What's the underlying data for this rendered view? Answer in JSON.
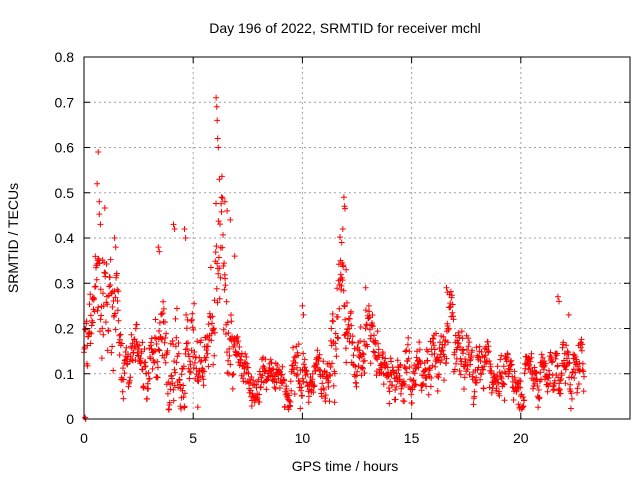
{
  "chart_data": {
    "type": "scatter",
    "title": "Day 196 of 2022, SRMTID for receiver mchl",
    "xlabel": "GPS time / hours",
    "ylabel": "SRMTID / TECUs",
    "xlim": [
      0,
      25
    ],
    "ylim": [
      0,
      0.8
    ],
    "xticks": [
      0,
      5,
      10,
      15,
      20
    ],
    "yticks": [
      0,
      0.1,
      0.2,
      0.3,
      0.4,
      0.5,
      0.6,
      0.7,
      0.8
    ],
    "ytick_labels": [
      "0",
      "0.1",
      "0.2",
      "0.3",
      "0.4",
      "0.5",
      "0.6",
      "0.7",
      "0.8"
    ],
    "grid": true,
    "marker": "+",
    "color": "#ff0000",
    "sample_interval_hours": 0.0167,
    "envelope": {
      "x": [
        0,
        0.1,
        0.3,
        0.5,
        0.7,
        0.9,
        1.1,
        1.3,
        1.5,
        1.7,
        2.0,
        2.3,
        2.6,
        3.0,
        3.3,
        3.6,
        4.0,
        4.3,
        4.6,
        5.0,
        5.3,
        5.6,
        5.9,
        6.1,
        6.3,
        6.5,
        6.7,
        7.0,
        7.3,
        7.6,
        8.0,
        8.5,
        9.0,
        9.5,
        9.8,
        10.0,
        10.3,
        10.7,
        11.0,
        11.3,
        11.6,
        11.9,
        12.2,
        12.5,
        12.8,
        13.0,
        13.3,
        13.7,
        14.0,
        14.5,
        15.0,
        15.5,
        16.0,
        16.5,
        16.8,
        17.0,
        17.5,
        18.0,
        18.5,
        19.0,
        19.5,
        20.0,
        20.5,
        21.0,
        21.5,
        21.8,
        22.0,
        22.3,
        22.6,
        22.9
      ],
      "center": [
        0.15,
        0.18,
        0.2,
        0.22,
        0.28,
        0.26,
        0.24,
        0.28,
        0.25,
        0.2,
        0.12,
        0.11,
        0.12,
        0.14,
        0.17,
        0.15,
        0.18,
        0.16,
        0.14,
        0.17,
        0.15,
        0.13,
        0.16,
        0.25,
        0.3,
        0.22,
        0.18,
        0.12,
        0.11,
        0.1,
        0.09,
        0.09,
        0.08,
        0.09,
        0.12,
        0.1,
        0.08,
        0.1,
        0.12,
        0.18,
        0.24,
        0.28,
        0.16,
        0.13,
        0.15,
        0.18,
        0.16,
        0.13,
        0.12,
        0.11,
        0.09,
        0.12,
        0.13,
        0.15,
        0.22,
        0.14,
        0.13,
        0.12,
        0.11,
        0.1,
        0.1,
        0.09,
        0.11,
        0.1,
        0.09,
        0.14,
        0.12,
        0.1,
        0.1,
        0.11
      ],
      "spread": [
        0.03,
        0.06,
        0.08,
        0.12,
        0.16,
        0.14,
        0.1,
        0.11,
        0.1,
        0.08,
        0.05,
        0.05,
        0.06,
        0.07,
        0.1,
        0.08,
        0.1,
        0.09,
        0.08,
        0.09,
        0.08,
        0.07,
        0.1,
        0.18,
        0.16,
        0.12,
        0.08,
        0.05,
        0.04,
        0.04,
        0.04,
        0.04,
        0.04,
        0.05,
        0.07,
        0.05,
        0.04,
        0.05,
        0.06,
        0.09,
        0.1,
        0.1,
        0.06,
        0.05,
        0.07,
        0.08,
        0.06,
        0.05,
        0.05,
        0.05,
        0.05,
        0.05,
        0.06,
        0.06,
        0.08,
        0.06,
        0.05,
        0.05,
        0.05,
        0.04,
        0.04,
        0.05,
        0.05,
        0.05,
        0.05,
        0.07,
        0.05,
        0.05,
        0.05,
        0.04
      ]
    },
    "peaks": [
      {
        "x": 0.65,
        "y": 0.59
      },
      {
        "x": 0.6,
        "y": 0.52
      },
      {
        "x": 0.7,
        "y": 0.48
      },
      {
        "x": 0.75,
        "y": 0.43
      },
      {
        "x": 1.4,
        "y": 0.4
      },
      {
        "x": 1.45,
        "y": 0.38
      },
      {
        "x": 3.4,
        "y": 0.38
      },
      {
        "x": 3.45,
        "y": 0.37
      },
      {
        "x": 4.1,
        "y": 0.43
      },
      {
        "x": 4.15,
        "y": 0.42
      },
      {
        "x": 4.6,
        "y": 0.42
      },
      {
        "x": 4.65,
        "y": 0.4
      },
      {
        "x": 6.05,
        "y": 0.71
      },
      {
        "x": 6.08,
        "y": 0.69
      },
      {
        "x": 6.1,
        "y": 0.66
      },
      {
        "x": 6.12,
        "y": 0.62
      },
      {
        "x": 6.15,
        "y": 0.6
      },
      {
        "x": 6.2,
        "y": 0.53
      },
      {
        "x": 6.3,
        "y": 0.49
      },
      {
        "x": 6.45,
        "y": 0.48
      },
      {
        "x": 6.55,
        "y": 0.46
      },
      {
        "x": 6.7,
        "y": 0.44
      },
      {
        "x": 6.9,
        "y": 0.36
      },
      {
        "x": 10.0,
        "y": 0.25
      },
      {
        "x": 10.05,
        "y": 0.23
      },
      {
        "x": 11.9,
        "y": 0.49
      },
      {
        "x": 11.93,
        "y": 0.47
      },
      {
        "x": 11.95,
        "y": 0.465
      },
      {
        "x": 11.85,
        "y": 0.42
      },
      {
        "x": 11.8,
        "y": 0.39
      },
      {
        "x": 11.75,
        "y": 0.35
      },
      {
        "x": 12.0,
        "y": 0.33
      },
      {
        "x": 12.9,
        "y": 0.29
      },
      {
        "x": 16.6,
        "y": 0.29
      },
      {
        "x": 16.65,
        "y": 0.28
      },
      {
        "x": 21.7,
        "y": 0.27
      },
      {
        "x": 21.75,
        "y": 0.26
      },
      {
        "x": 22.2,
        "y": 0.23
      },
      {
        "x": 0.05,
        "y": 0.003
      },
      {
        "x": 0.08,
        "y": 0.0
      }
    ]
  }
}
